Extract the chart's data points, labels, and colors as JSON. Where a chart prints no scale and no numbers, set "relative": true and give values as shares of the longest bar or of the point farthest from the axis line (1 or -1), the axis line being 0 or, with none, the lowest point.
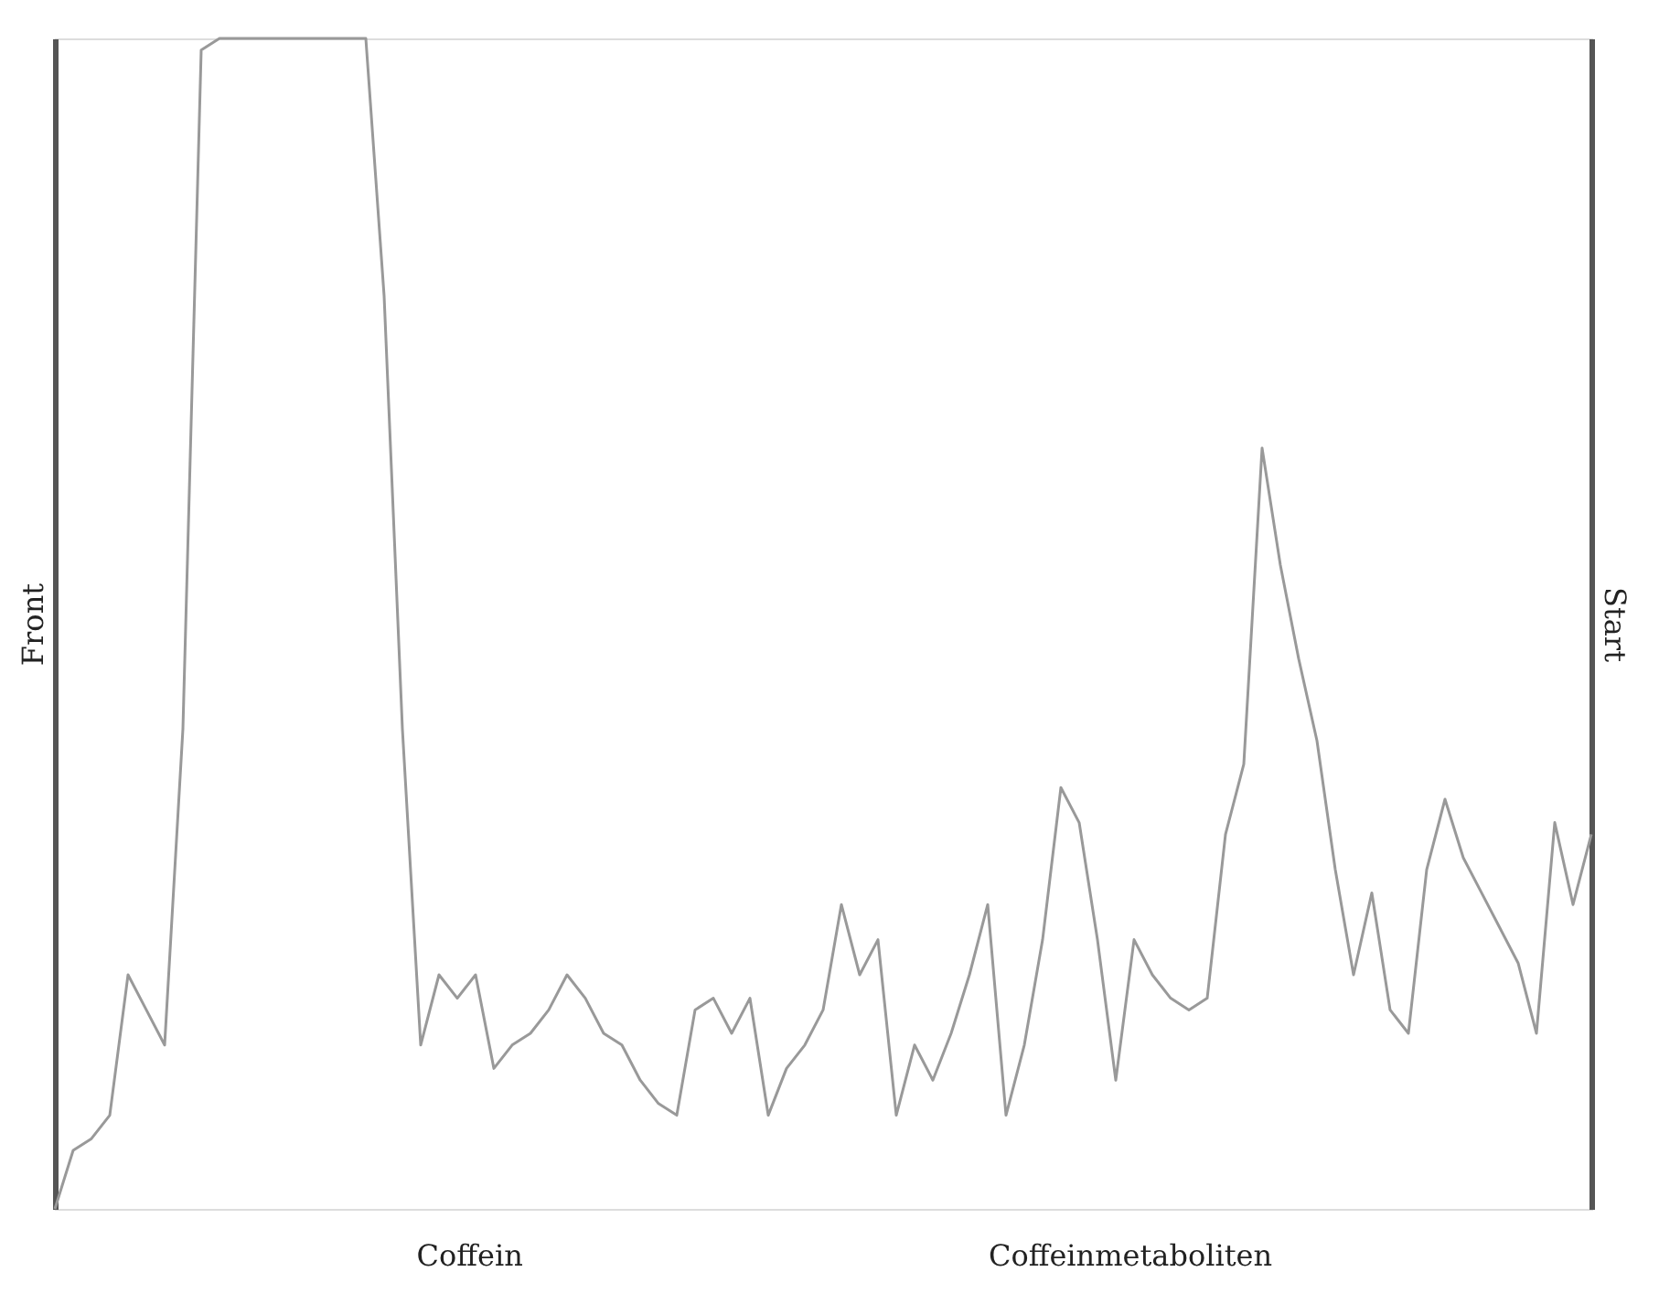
{
  "chart_data": {
    "type": "line",
    "relative": true,
    "ylabel": "Front",
    "y2label": "Start",
    "color": "#999999",
    "grid": false,
    "annotations": [
      "Coffein",
      "Coffeinmetaboliten"
    ],
    "categories": [
      null,
      null,
      null,
      null,
      null,
      null,
      null,
      null,
      null,
      null,
      null,
      null,
      null,
      null,
      null,
      null,
      null,
      null,
      null,
      null,
      null,
      null,
      null,
      null,
      null,
      null,
      null,
      null,
      null,
      null,
      null,
      null,
      null,
      null,
      null,
      null,
      null,
      null,
      null,
      null,
      null,
      null,
      null,
      null,
      null,
      null,
      null,
      null,
      null,
      null,
      null,
      null,
      null,
      null,
      null,
      null,
      null,
      null,
      null,
      null,
      null,
      null,
      null,
      null,
      null,
      null,
      null,
      null,
      null,
      null,
      null,
      null,
      null,
      null,
      null,
      null,
      null,
      null,
      null,
      null,
      null,
      null,
      null,
      null,
      null
    ],
    "values": [
      0,
      0.05,
      0.06,
      0.08,
      0.2,
      0.17,
      0.14,
      0.41,
      0.99,
      1,
      1,
      1,
      1,
      1,
      1,
      1,
      1,
      1,
      0.78,
      0.41,
      0.14,
      0.2,
      0.18,
      0.2,
      0.12,
      0.14,
      0.15,
      0.17,
      0.2,
      0.18,
      0.15,
      0.14,
      0.11,
      0.09,
      0.08,
      0.17,
      0.18,
      0.15,
      0.18,
      0.08,
      0.12,
      0.14,
      0.17,
      0.26,
      0.2,
      0.23,
      0.08,
      0.14,
      0.11,
      0.15,
      0.2,
      0.26,
      0.08,
      0.14,
      0.23,
      0.36,
      0.33,
      0.23,
      0.11,
      0.23,
      0.2,
      0.18,
      0.17,
      0.18,
      0.32,
      0.38,
      0.65,
      0.55,
      0.47,
      0.4,
      0.29,
      0.2,
      0.27,
      0.17,
      0.15,
      0.29,
      0.35,
      0.3,
      0.27,
      0.24,
      0.21,
      0.15,
      0.33,
      0.26,
      0.32
    ]
  }
}
